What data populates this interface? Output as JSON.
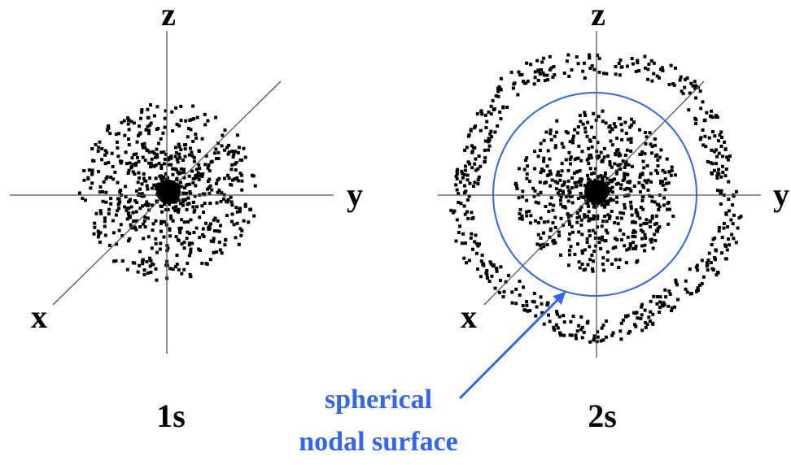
{
  "panels": [
    {
      "axes": {
        "z": "z",
        "y": "y",
        "x": "x"
      },
      "label": "1s"
    },
    {
      "axes": {
        "z": "z",
        "y": "y",
        "x": "x"
      },
      "label": "2s"
    }
  ],
  "annotation": {
    "lines": [
      "spherical",
      "nodal surface"
    ]
  }
}
